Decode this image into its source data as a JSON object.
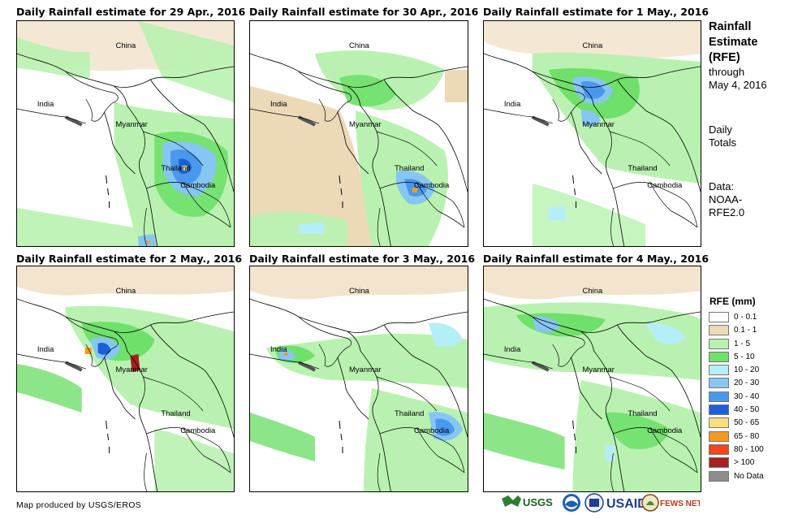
{
  "panels": [
    {
      "title": "Daily Rainfall estimate for 29 Apr., 2016",
      "labels": {
        "china": "China",
        "india": "India",
        "myanmar": "Myanmar",
        "thailand": "Thailand",
        "cambodia": "Cambodia"
      }
    },
    {
      "title": "Daily Rainfall estimate for 30 Apr., 2016",
      "labels": {
        "china": "China",
        "india": "India",
        "myanmar": "Myanmar",
        "thailand": "Thailand",
        "cambodia": "Cambodia"
      }
    },
    {
      "title": "Daily Rainfall estimate for 1 May., 2016",
      "labels": {
        "china": "China",
        "india": "India",
        "myanmar": "Myanmar",
        "thailand": "Thailand",
        "cambodia": "Cambodia"
      }
    },
    {
      "title": "Daily Rainfall estimate for 2 May., 2016",
      "labels": {
        "china": "China",
        "india": "India",
        "myanmar": "Myanmar",
        "thailand": "Thailand",
        "cambodia": "Cambodia"
      }
    },
    {
      "title": "Daily Rainfall estimate for 3 May., 2016",
      "labels": {
        "china": "China",
        "india": "India",
        "myanmar": "Myanmar",
        "thailand": "Thailand",
        "cambodia": "Cambodia"
      }
    },
    {
      "title": "Daily Rainfall estimate for 4 May., 2016",
      "labels": {
        "china": "China",
        "india": "India",
        "myanmar": "Myanmar",
        "thailand": "Thailand",
        "cambodia": "Cambodia"
      }
    }
  ],
  "side": {
    "title1": "Rainfall",
    "title2": "Estimate",
    "title3": "(RFE)",
    "through1": "through",
    "through2": "May 4, 2016",
    "totals1": "Daily",
    "totals2": "Totals",
    "data1": "Data:",
    "data2": "NOAA-",
    "data3": "RFE2.0"
  },
  "legend": {
    "title": "RFE (mm)",
    "items": [
      {
        "label": "0 - 0.1",
        "color": "#ffffff"
      },
      {
        "label": "0.1 - 1",
        "color": "#ecd9b8"
      },
      {
        "label": "1 - 5",
        "color": "#b9f2b0"
      },
      {
        "label": "5 - 10",
        "color": "#6fe06a"
      },
      {
        "label": "10 - 20",
        "color": "#b4eef8"
      },
      {
        "label": "20 - 30",
        "color": "#86c6f2"
      },
      {
        "label": "30 - 40",
        "color": "#4a98ee"
      },
      {
        "label": "40 - 50",
        "color": "#1c5fd8"
      },
      {
        "label": "50 - 65",
        "color": "#f8e07a"
      },
      {
        "label": "65 - 80",
        "color": "#f79a1c"
      },
      {
        "label": "80 - 100",
        "color": "#f2461c"
      },
      {
        "label": "> 100",
        "color": "#a82020"
      },
      {
        "label": "No Data",
        "color": "#8c8c8c"
      }
    ]
  },
  "credit": "Map produced by USGS/EROS",
  "logos": {
    "usgs": "USGS",
    "usaid": "USAID",
    "fewsnet": "FEWS NET",
    "noaa": "NOAA"
  }
}
